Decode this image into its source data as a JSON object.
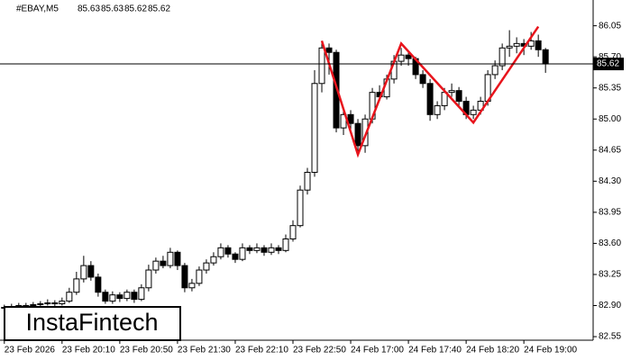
{
  "chart_data": {
    "type": "candlestick",
    "symbol": "#EBAY,M5",
    "header_values": [
      85.63,
      85.63,
      85.62,
      85.62
    ],
    "current_price": 85.62,
    "watermark": "InstaFintech",
    "bull_color": "#ffffff",
    "bear_color": "#000000",
    "line_color": "#000000",
    "xlim": [
      -0.6,
      81.6
    ],
    "ylim": [
      82.51,
      86.34
    ],
    "yticks": [
      82.55,
      {
        "value": 82.9,
        "label": "82.90"
      },
      83.25,
      {
        "value": 83.6,
        "label": "83.60"
      },
      83.95,
      {
        "value": 84.3,
        "label": "84.30"
      },
      84.65,
      {
        "value": 85,
        "label": "85.00"
      },
      85.35,
      {
        "value": 85.7,
        "label": "85.70"
      },
      86.05
    ],
    "xticks": [
      {
        "value": 0,
        "label": "23 Feb 2026"
      },
      {
        "value": 8,
        "label": "23 Feb 20:10"
      },
      {
        "value": 16,
        "label": "23 Feb 20:50"
      },
      {
        "value": 24,
        "label": "23 Feb 21:30"
      },
      {
        "value": 32,
        "label": "23 Feb 22:10"
      },
      {
        "value": 40,
        "label": "23 Feb 22:50"
      },
      {
        "value": 48,
        "label": "24 Feb 17:00"
      },
      {
        "value": 56,
        "label": "24 Feb 17:40"
      },
      {
        "value": 64,
        "label": "24 Feb 18:20"
      },
      {
        "value": 72,
        "label": "24 Feb 19:00"
      }
    ],
    "candles": [
      [
        82.87,
        82.91,
        82.85,
        82.88
      ],
      [
        82.88,
        82.92,
        82.86,
        82.89
      ],
      [
        82.89,
        82.93,
        82.87,
        82.9
      ],
      [
        82.9,
        82.93,
        82.88,
        82.9
      ],
      [
        82.9,
        82.94,
        82.88,
        82.91
      ],
      [
        82.91,
        82.95,
        82.89,
        82.92
      ],
      [
        82.92,
        82.97,
        82.9,
        82.93
      ],
      [
        82.93,
        82.96,
        82.89,
        82.92
      ],
      [
        82.92,
        82.99,
        82.9,
        82.95
      ],
      [
        82.95,
        83.1,
        82.93,
        83.05
      ],
      [
        83.05,
        83.28,
        83.02,
        83.2
      ],
      [
        83.2,
        83.46,
        83.16,
        83.35
      ],
      [
        83.35,
        83.4,
        83.18,
        83.22
      ],
      [
        83.22,
        83.26,
        83.0,
        83.05
      ],
      [
        83.05,
        83.08,
        82.92,
        82.95
      ],
      [
        82.95,
        83.06,
        82.92,
        83.02
      ],
      [
        83.02,
        83.05,
        82.94,
        82.98
      ],
      [
        82.98,
        83.08,
        82.95,
        83.05
      ],
      [
        83.05,
        83.08,
        82.93,
        82.97
      ],
      [
        82.97,
        83.14,
        82.95,
        83.1
      ],
      [
        83.1,
        83.36,
        83.06,
        83.3
      ],
      [
        83.3,
        83.44,
        83.26,
        83.4
      ],
      [
        83.4,
        83.46,
        83.32,
        83.35
      ],
      [
        83.35,
        83.55,
        83.32,
        83.5
      ],
      [
        83.5,
        83.52,
        83.3,
        83.35
      ],
      [
        83.35,
        83.38,
        83.05,
        83.1
      ],
      [
        83.1,
        83.2,
        83.06,
        83.15
      ],
      [
        83.15,
        83.34,
        83.12,
        83.3
      ],
      [
        83.3,
        83.42,
        83.26,
        83.38
      ],
      [
        83.38,
        83.5,
        83.35,
        83.45
      ],
      [
        83.45,
        83.6,
        83.42,
        83.55
      ],
      [
        83.55,
        83.58,
        83.44,
        83.48
      ],
      [
        83.48,
        83.5,
        83.38,
        83.42
      ],
      [
        83.42,
        83.6,
        83.4,
        83.55
      ],
      [
        83.55,
        83.58,
        83.48,
        83.52
      ],
      [
        83.52,
        83.6,
        83.49,
        83.55
      ],
      [
        83.55,
        83.58,
        83.46,
        83.5
      ],
      [
        83.5,
        83.6,
        83.47,
        83.55
      ],
      [
        83.55,
        83.58,
        83.48,
        83.52
      ],
      [
        83.52,
        83.7,
        83.5,
        83.65
      ],
      [
        83.65,
        83.86,
        83.62,
        83.8
      ],
      [
        83.8,
        84.25,
        83.78,
        84.2
      ],
      [
        84.2,
        84.45,
        84.15,
        84.4
      ],
      [
        84.4,
        85.55,
        84.35,
        85.4
      ],
      [
        85.4,
        85.88,
        85.3,
        85.8
      ],
      [
        85.8,
        85.85,
        85.5,
        85.75
      ],
      [
        85.75,
        85.78,
        84.85,
        84.9
      ],
      [
        84.9,
        85.1,
        84.82,
        85.05
      ],
      [
        85.05,
        85.1,
        84.88,
        84.95
      ],
      [
        84.95,
        85.0,
        84.6,
        84.7
      ],
      [
        84.7,
        85.05,
        84.62,
        85.0
      ],
      [
        85.0,
        85.35,
        84.95,
        85.3
      ],
      [
        85.3,
        85.38,
        85.2,
        85.25
      ],
      [
        85.25,
        85.5,
        85.22,
        85.45
      ],
      [
        85.45,
        85.72,
        85.4,
        85.65
      ],
      [
        85.65,
        85.8,
        85.6,
        85.72
      ],
      [
        85.72,
        85.75,
        85.6,
        85.68
      ],
      [
        85.68,
        85.7,
        85.45,
        85.5
      ],
      [
        85.5,
        85.55,
        85.35,
        85.4
      ],
      [
        85.4,
        85.45,
        84.98,
        85.05
      ],
      [
        85.05,
        85.2,
        85.0,
        85.15
      ],
      [
        85.15,
        85.35,
        85.1,
        85.3
      ],
      [
        85.3,
        85.4,
        85.25,
        85.32
      ],
      [
        85.32,
        85.36,
        85.15,
        85.2
      ],
      [
        85.2,
        85.25,
        85.0,
        85.05
      ],
      [
        85.05,
        85.15,
        85.0,
        85.1
      ],
      [
        85.1,
        85.25,
        85.05,
        85.2
      ],
      [
        85.2,
        85.55,
        85.15,
        85.5
      ],
      [
        85.5,
        85.66,
        85.45,
        85.6
      ],
      [
        85.6,
        85.85,
        85.55,
        85.8
      ],
      [
        85.8,
        86.0,
        85.7,
        85.82
      ],
      [
        85.82,
        85.92,
        85.74,
        85.85
      ],
      [
        85.85,
        85.9,
        85.72,
        85.82
      ],
      [
        85.82,
        85.98,
        85.78,
        85.88
      ],
      [
        85.88,
        85.95,
        85.7,
        85.78
      ],
      [
        85.78,
        85.8,
        85.52,
        85.62
      ]
    ],
    "pattern": {
      "color": "#e8141c",
      "x": [
        44,
        49,
        55,
        65,
        74
      ],
      "y": [
        85.88,
        84.6,
        85.85,
        84.96,
        86.04
      ]
    }
  }
}
